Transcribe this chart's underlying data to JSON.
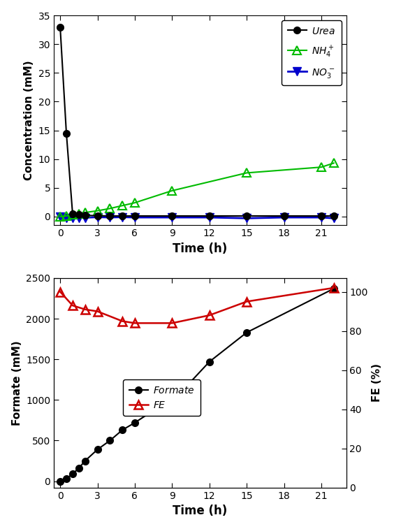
{
  "top": {
    "urea_x": [
      0,
      0.5,
      1,
      1.5,
      2,
      3,
      4,
      5,
      6,
      9,
      12,
      15,
      18,
      21,
      22
    ],
    "urea_y": [
      33,
      14.5,
      0.5,
      0.3,
      0.2,
      0.15,
      0.1,
      0.1,
      0.1,
      0.1,
      0.1,
      0.1,
      0.1,
      0.1,
      0.1
    ],
    "nh4_x": [
      0,
      0.5,
      1,
      1.5,
      2,
      3,
      4,
      5,
      6,
      9,
      15,
      21,
      22
    ],
    "nh4_y": [
      0,
      0.1,
      0.3,
      0.5,
      0.7,
      1.0,
      1.4,
      1.9,
      2.4,
      4.5,
      7.6,
      8.6,
      9.3
    ],
    "no3_x": [
      0,
      0.5,
      1,
      1.5,
      2,
      3,
      4,
      5,
      6,
      9,
      12,
      15,
      18,
      21,
      22
    ],
    "no3_y": [
      0.0,
      -0.2,
      -0.2,
      -0.2,
      -0.2,
      -0.1,
      -0.15,
      -0.1,
      -0.15,
      -0.15,
      -0.15,
      -0.3,
      -0.15,
      -0.15,
      -0.3
    ],
    "no3_line_y": 0.0,
    "ylabel": "Concentration (mM)",
    "xlabel": "Time (h)",
    "ylim": [
      -1.5,
      35
    ],
    "yticks": [
      0,
      5,
      10,
      15,
      20,
      25,
      30,
      35
    ],
    "xticks": [
      0,
      3,
      6,
      9,
      12,
      15,
      18,
      21
    ],
    "xlim": [
      -0.5,
      23
    ]
  },
  "bottom": {
    "formate_x": [
      0,
      0.5,
      1,
      1.5,
      2,
      3,
      4,
      5,
      6,
      9,
      9.5,
      12,
      15,
      22
    ],
    "formate_y": [
      0,
      30,
      90,
      160,
      250,
      390,
      500,
      630,
      720,
      1020,
      1060,
      1470,
      1830,
      2370
    ],
    "fe_x": [
      0,
      1,
      2,
      3,
      5,
      6,
      9,
      12,
      15,
      22
    ],
    "fe_y": [
      100,
      93,
      91,
      90,
      85,
      84,
      84,
      88,
      95,
      102
    ],
    "ylabel_left": "Formate (mM)",
    "ylabel_right": "FE (%)",
    "xlabel": "Time (h)",
    "ylim_left": [
      -80,
      2500
    ],
    "ylim_right": [
      0,
      107
    ],
    "yticks_left": [
      0,
      500,
      1000,
      1500,
      2000,
      2500
    ],
    "yticks_right": [
      0,
      20,
      40,
      60,
      80,
      100
    ],
    "xticks": [
      0,
      3,
      6,
      9,
      12,
      15,
      18,
      21
    ],
    "xlim": [
      -0.5,
      23
    ]
  },
  "urea_color": "#000000",
  "nh4_color": "#00bb00",
  "no3_color": "#0000cc",
  "formate_color": "#000000",
  "fe_color": "#cc0000",
  "bg_color": "#ffffff"
}
